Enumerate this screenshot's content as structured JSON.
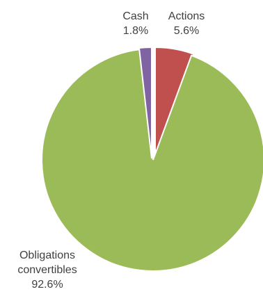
{
  "chart_data": {
    "type": "pie",
    "start_angle_deg": 0,
    "direction": "clockwise",
    "slices": [
      {
        "label_lines": [
          "Actions"
        ],
        "value": 5.6,
        "value_text": "5.6%",
        "color": "#c0504d"
      },
      {
        "label_lines": [
          "Obligations",
          "convertibles"
        ],
        "value": 92.6,
        "value_text": "92.6%",
        "color": "#9bbb59"
      },
      {
        "label_lines": [
          "Cash"
        ],
        "value": 1.8,
        "value_text": "1.8%",
        "color": "#8064a2"
      }
    ],
    "slice_border_color": "#ffffff",
    "text_color": "#404040"
  }
}
